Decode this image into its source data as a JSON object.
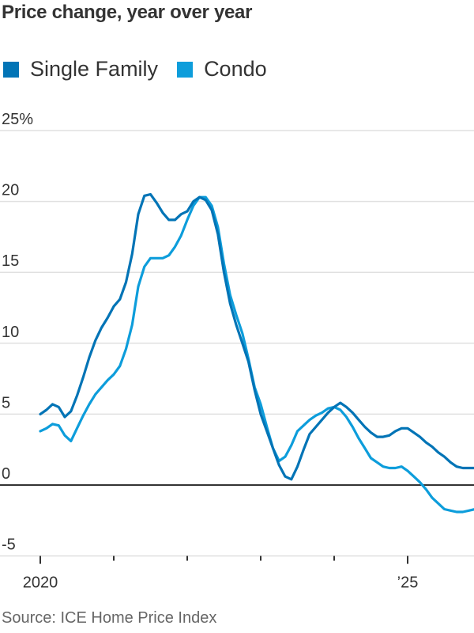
{
  "title": "Price change, year over year",
  "legend": [
    {
      "label": "Single Family",
      "color": "#0274b6"
    },
    {
      "label": "Condo",
      "color": "#0d9ddb"
    }
  ],
  "source": "Source: ICE Home Price Index",
  "chart_data": {
    "type": "line",
    "title": "Price change, year over year",
    "xlabel": "",
    "ylabel": "",
    "ylim": [
      -5,
      25
    ],
    "yticks": [
      {
        "value": 25,
        "label": "25%"
      },
      {
        "value": 20,
        "label": "20"
      },
      {
        "value": 15,
        "label": "15"
      },
      {
        "value": 10,
        "label": "10"
      },
      {
        "value": 5,
        "label": "5"
      },
      {
        "value": 0,
        "label": "0"
      },
      {
        "value": -5,
        "label": "-5"
      }
    ],
    "xticks": [
      {
        "year": 2020,
        "label": "2020"
      },
      {
        "year": 2021,
        "label": ""
      },
      {
        "year": 2022,
        "label": ""
      },
      {
        "year": 2023,
        "label": ""
      },
      {
        "year": 2024,
        "label": ""
      },
      {
        "year": 2025,
        "label": "’25"
      }
    ],
    "x_start": "2020-01",
    "x_step": "month",
    "grid": true,
    "legend_position": "top",
    "series": [
      {
        "name": "Single Family",
        "color": "#0274b6",
        "values": [
          5.0,
          5.3,
          5.7,
          5.5,
          4.8,
          5.2,
          6.3,
          7.6,
          9.0,
          10.2,
          11.1,
          11.8,
          12.6,
          13.1,
          14.3,
          16.3,
          19.1,
          20.4,
          20.5,
          19.9,
          19.2,
          18.7,
          18.7,
          19.1,
          19.3,
          20.0,
          20.3,
          20.1,
          19.4,
          17.7,
          15.0,
          12.8,
          11.3,
          10.0,
          8.7,
          6.7,
          5.0,
          3.8,
          2.6,
          1.4,
          0.6,
          0.4,
          1.3,
          2.5,
          3.6,
          4.1,
          4.6,
          5.1,
          5.5,
          5.8,
          5.5,
          5.1,
          4.6,
          4.1,
          3.7,
          3.4,
          3.4,
          3.5,
          3.8,
          4.0,
          4.0,
          3.7,
          3.4,
          3.0,
          2.7,
          2.3,
          2.0,
          1.6,
          1.3,
          1.2,
          1.2,
          1.2
        ]
      },
      {
        "name": "Condo",
        "color": "#0d9ddb",
        "values": [
          3.8,
          4.0,
          4.3,
          4.2,
          3.5,
          3.1,
          4.0,
          4.9,
          5.7,
          6.4,
          6.9,
          7.4,
          7.8,
          8.4,
          9.6,
          11.3,
          14.0,
          15.4,
          16.0,
          16.0,
          16.0,
          16.2,
          16.8,
          17.6,
          18.7,
          19.7,
          20.3,
          20.3,
          19.7,
          18.2,
          15.6,
          13.4,
          12.0,
          10.7,
          8.9,
          6.9,
          5.7,
          4.1,
          2.6,
          1.7,
          2.0,
          2.8,
          3.8,
          4.2,
          4.6,
          4.9,
          5.1,
          5.4,
          5.5,
          5.3,
          4.8,
          4.1,
          3.3,
          2.6,
          1.9,
          1.6,
          1.3,
          1.2,
          1.2,
          1.3,
          1.0,
          0.6,
          0.2,
          -0.3,
          -0.9,
          -1.3,
          -1.7,
          -1.8,
          -1.9,
          -1.9,
          -1.8,
          -1.7
        ]
      }
    ]
  }
}
